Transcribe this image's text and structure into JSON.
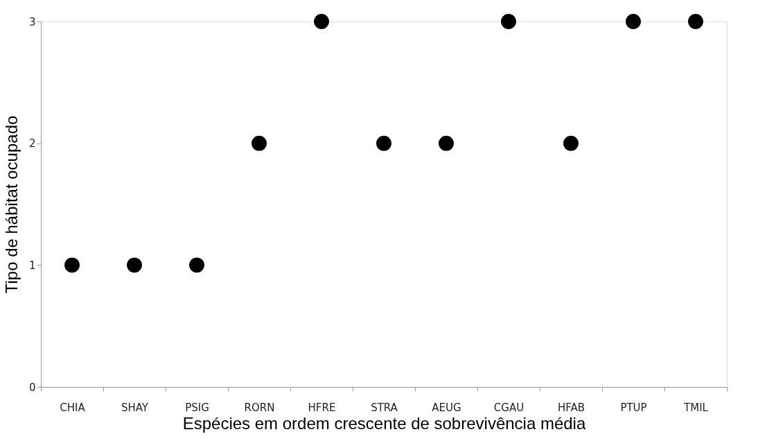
{
  "chart_data": {
    "type": "scatter",
    "xlabel": "Espécies em ordem crescente de sobrevivência média",
    "ylabel": "Tipo de hábitat ocupado",
    "categories": [
      "CHIA",
      "SHAY",
      "PSIG",
      "RORN",
      "HFRE",
      "STRA",
      "AEUG",
      "CGAU",
      "HFAB",
      "PTUP",
      "TMIL"
    ],
    "series": [
      {
        "color": "#000000",
        "values": [
          1,
          1,
          1,
          2,
          3,
          2,
          2,
          3,
          2,
          3,
          3
        ]
      }
    ],
    "ylim": [
      0,
      3
    ],
    "yticks": [
      0,
      1,
      2,
      3
    ],
    "grid": false,
    "marker": "circle"
  }
}
